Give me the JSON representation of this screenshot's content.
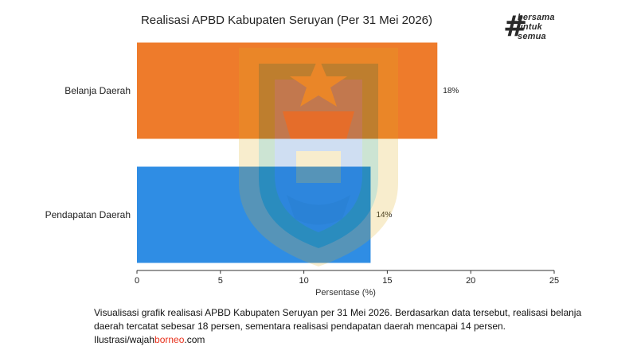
{
  "chart_data": {
    "type": "bar",
    "orientation": "horizontal",
    "title": "Realisasi APBD Kabupaten Seruyan (Per 31 Mei 2026)",
    "categories": [
      "Belanja Daerah",
      "Pendapatan Daerah"
    ],
    "values": [
      18,
      14
    ],
    "value_labels": [
      "18%",
      "14%"
    ],
    "colors": [
      "#ee7b2b",
      "#2f8de4"
    ],
    "xlabel": "Persentase (%)",
    "ylabel": "",
    "xlim": [
      0,
      25
    ],
    "xticks": [
      0,
      5,
      10,
      15,
      20,
      25
    ],
    "grid": false,
    "legend": "none"
  },
  "logo": {
    "symbol": "#",
    "line1": "bersama",
    "line2": "untuk",
    "line3": "semua"
  },
  "caption": {
    "text_before": "Visualisasi grafik realisasi APBD Kabupaten Seruyan per 31 Mei 2026. Berdasarkan data tersebut, realisasi belanja daerah tercatat sebesar 18 persen, sementara realisasi pendapatan daerah mencapai 14 persen. Ilustrasi/wajah",
    "brand": "borneo",
    "text_after": ".com"
  },
  "watermark": {
    "icon": "regency-emblem-icon"
  }
}
